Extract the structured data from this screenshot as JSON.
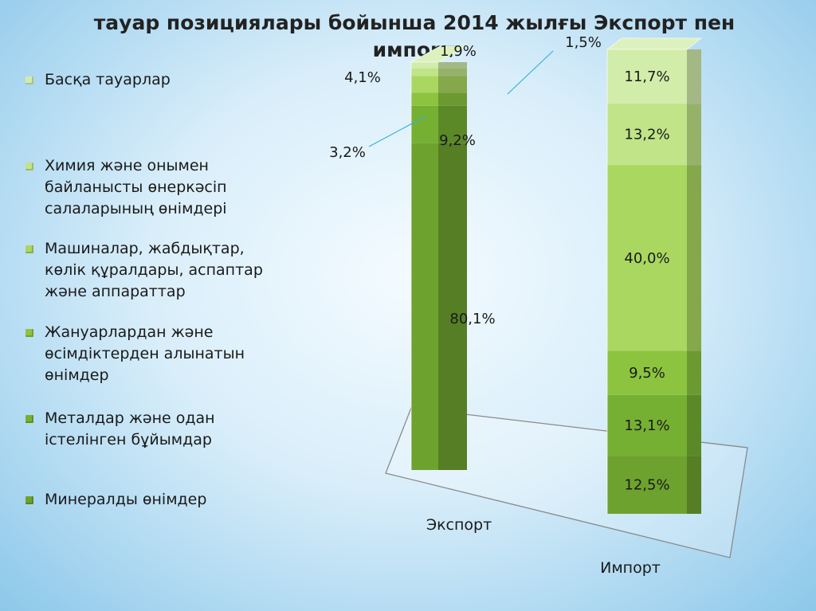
{
  "title": "тауар позициялары бойынша 2014 жылғы Экспорт пен импорт",
  "colors": {
    "mineral": "#6ea22e",
    "metals": "#76b032",
    "agri": "#8cc43f",
    "machinery": "#a9d760",
    "chemistry": "#c0e487",
    "other": "#d2ecaa"
  },
  "legend": [
    {
      "key": "other",
      "label": "Басқа тауарлар"
    },
    {
      "key": "chemistry",
      "label": "Химия және онымен байланысты өнеркәсіп салаларының өнімдері"
    },
    {
      "key": "machinery",
      "label": "Машиналар, жабдықтар, көлік құралдары, аспаптар және аппараттар"
    },
    {
      "key": "agri",
      "label": "Жануарлардан және өсімдіктерден алынатын өнімдер"
    },
    {
      "key": "metals",
      "label": "Металдар және одан істелінген бұйымдар"
    },
    {
      "key": "mineral",
      "label": "Минералды өнімдер"
    }
  ],
  "chart_data": {
    "type": "bar",
    "stacked": true,
    "categories": [
      "Экспорт",
      "Импорт"
    ],
    "series": [
      {
        "name": "Минералды өнімдер",
        "key": "mineral",
        "values": [
          80.1,
          12.5
        ],
        "labels": [
          "80,1%",
          "12,5%"
        ]
      },
      {
        "name": "Металдар және одан істелінген бұйымдар",
        "key": "metals",
        "values": [
          9.2,
          13.1
        ],
        "labels": [
          "9,2%",
          "13,1%"
        ]
      },
      {
        "name": "Жануарлардан және өсімдіктерден алынатын өнімдер",
        "key": "agri",
        "values": [
          3.2,
          9.5
        ],
        "labels": [
          "3,2%",
          "9,5%"
        ]
      },
      {
        "name": "Машиналар, жабдықтар, көлік құралдары, аспаптар және аппараттар",
        "key": "machinery",
        "values": [
          4.1,
          40.0
        ],
        "labels": [
          "4,1%",
          "40,0%"
        ]
      },
      {
        "name": "Химия және онымен байланысты өнеркәсіп салаларының өнімдері",
        "key": "chemistry",
        "values": [
          1.9,
          13.2
        ],
        "labels": [
          "1,9%",
          "13,2%"
        ]
      },
      {
        "name": "Басқа тауарлар",
        "key": "other",
        "values": [
          1.5,
          11.7
        ],
        "labels": [
          "1,5%",
          "11,7%"
        ]
      }
    ],
    "ylim": [
      0,
      100
    ],
    "legend_position": "left"
  }
}
